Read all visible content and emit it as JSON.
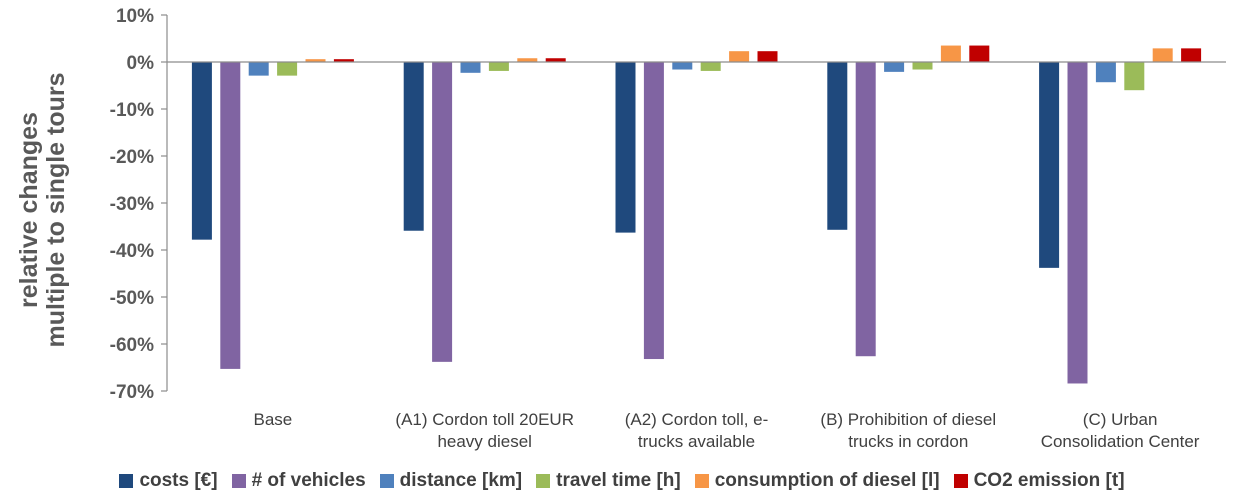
{
  "chart_data": {
    "type": "bar",
    "ylabel_lines": [
      "relative changes",
      "multiple to single tours"
    ],
    "ylim": [
      -70,
      10
    ],
    "yticks": [
      "10%",
      "0%",
      "-10%",
      "-20%",
      "-30%",
      "-40%",
      "-50%",
      "-60%",
      "-70%"
    ],
    "ytick_values": [
      10,
      0,
      -10,
      -20,
      -30,
      -40,
      -50,
      -60,
      -70
    ],
    "categories": [
      [
        "Base"
      ],
      [
        "(A1) Cordon toll 20EUR",
        "heavy diesel"
      ],
      [
        "(A2) Cordon toll, e-",
        "trucks available"
      ],
      [
        "(B) Prohibition of diesel",
        "trucks in cordon"
      ],
      [
        "(C) Urban",
        "Consolidation Center"
      ]
    ],
    "series": [
      {
        "name": "costs [€]",
        "color": "#1F497D",
        "values": [
          -37.8,
          -35.9,
          -36.3,
          -35.7,
          -43.8
        ]
      },
      {
        "name": "# of vehicles",
        "color": "#8064A2",
        "values": [
          -65.3,
          -63.8,
          -63.2,
          -62.6,
          -68.4
        ]
      },
      {
        "name": "distance [km]",
        "color": "#4F81BD",
        "values": [
          -2.9,
          -2.3,
          -1.6,
          -2.1,
          -4.3
        ]
      },
      {
        "name": "travel time [h]",
        "color": "#9BBB59",
        "values": [
          -2.9,
          -1.9,
          -1.9,
          -1.6,
          -6.0
        ]
      },
      {
        "name": "consumption of diesel [l]",
        "color": "#F79646",
        "values": [
          0.6,
          0.8,
          2.3,
          3.5,
          2.9
        ]
      },
      {
        "name": "CO2 emission [t]",
        "color": "#C00000",
        "values": [
          0.6,
          0.8,
          2.3,
          3.5,
          2.9
        ]
      }
    ],
    "grid": false,
    "legend_position": "bottom"
  }
}
